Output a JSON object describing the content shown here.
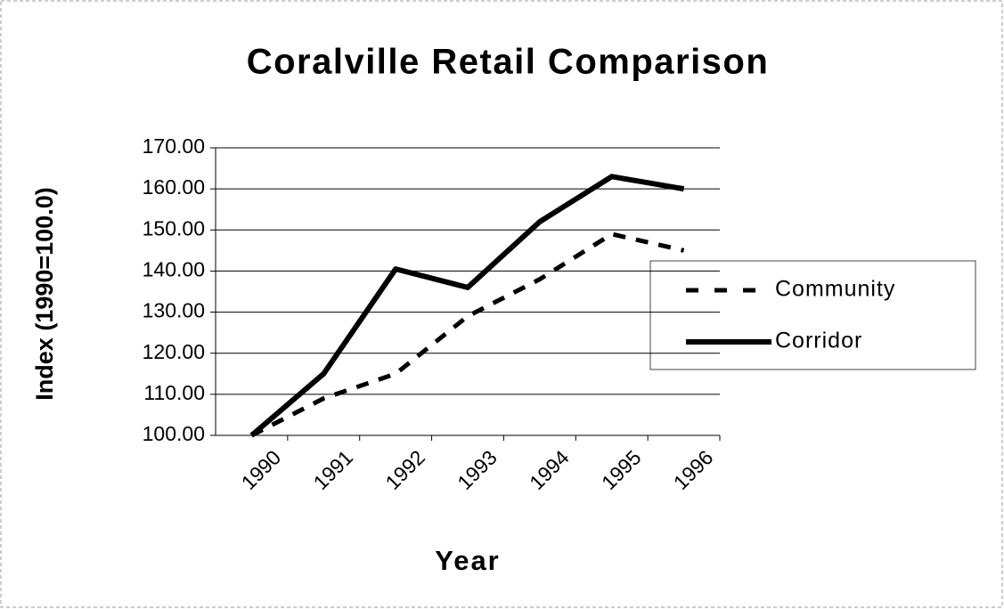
{
  "chart_data": {
    "type": "line",
    "title": "Coralville Retail Comparison",
    "x_label": "Year",
    "y_label": "Index (1990=100.0)",
    "categories": [
      "1990",
      "1991",
      "1992",
      "1993",
      "1994",
      "1995",
      "1996"
    ],
    "series": [
      {
        "name": "Community",
        "color": "#000000",
        "dash": true,
        "values": [
          100,
          109,
          115,
          129,
          138,
          149,
          145
        ]
      },
      {
        "name": "Corridor",
        "color": "#000000",
        "dash": false,
        "values": [
          100,
          115,
          140.5,
          136,
          152,
          163,
          160
        ]
      }
    ],
    "ylim": [
      100,
      170
    ],
    "yticks": [
      {
        "value": 100,
        "label": "100.00"
      },
      {
        "value": 110,
        "label": "110.00"
      },
      {
        "value": 120,
        "label": "120.00"
      },
      {
        "value": 130,
        "label": "130.00"
      },
      {
        "value": 140,
        "label": "140.00"
      },
      {
        "value": 150,
        "label": "150.00"
      },
      {
        "value": 160,
        "label": "160.00"
      },
      {
        "value": 170,
        "label": "170.00"
      }
    ],
    "grid": true,
    "legend": "right"
  }
}
